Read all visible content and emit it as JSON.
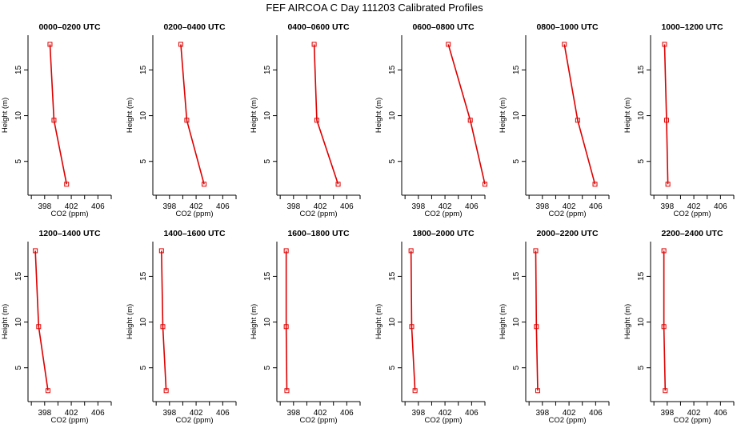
{
  "title": "FEF AIRCOA C  Day 111203  Calibrated Profiles",
  "colors": {
    "series": "#dd0000",
    "axis": "#000000"
  },
  "chart_data": [
    {
      "type": "line",
      "title": "0000–0200 UTC",
      "xlabel": "CO2 (ppm)",
      "ylabel": "Height (m)",
      "xlim": [
        395.5,
        408
      ],
      "ylim": [
        1.3,
        18.8
      ],
      "xticks": [
        398,
        402,
        406
      ],
      "yticks": [
        5,
        10,
        15
      ],
      "y": [
        17.8,
        9.5,
        2.5
      ],
      "x": [
        398.8,
        399.4,
        401.3
      ]
    },
    {
      "type": "line",
      "title": "0200–0400 UTC",
      "xlabel": "CO2 (ppm)",
      "ylabel": "Height (m)",
      "xlim": [
        395.5,
        408
      ],
      "ylim": [
        1.3,
        18.8
      ],
      "xticks": [
        398,
        402,
        406
      ],
      "yticks": [
        5,
        10,
        15
      ],
      "y": [
        17.8,
        9.5,
        2.5
      ],
      "x": [
        399.7,
        400.6,
        403.2
      ]
    },
    {
      "type": "line",
      "title": "0400–0600 UTC",
      "xlabel": "CO2 (ppm)",
      "ylabel": "Height (m)",
      "xlim": [
        395.5,
        408
      ],
      "ylim": [
        1.3,
        18.8
      ],
      "xticks": [
        398,
        402,
        406
      ],
      "yticks": [
        5,
        10,
        15
      ],
      "y": [
        17.8,
        9.5,
        2.5
      ],
      "x": [
        401.1,
        401.5,
        404.7
      ]
    },
    {
      "type": "line",
      "title": "0600–0800 UTC",
      "xlabel": "CO2 (ppm)",
      "ylabel": "Height (m)",
      "xlim": [
        395.5,
        408
      ],
      "ylim": [
        1.3,
        18.8
      ],
      "xticks": [
        398,
        402,
        406
      ],
      "yticks": [
        5,
        10,
        15
      ],
      "y": [
        17.8,
        9.5,
        2.5
      ],
      "x": [
        402.5,
        405.8,
        408.0
      ]
    },
    {
      "type": "line",
      "title": "0800–1000 UTC",
      "xlabel": "CO2 (ppm)",
      "ylabel": "Height (m)",
      "xlim": [
        395.5,
        408
      ],
      "ylim": [
        1.3,
        18.8
      ],
      "xticks": [
        398,
        402,
        406
      ],
      "yticks": [
        5,
        10,
        15
      ],
      "y": [
        17.8,
        9.5,
        2.5
      ],
      "x": [
        401.3,
        403.3,
        405.9
      ]
    },
    {
      "type": "line",
      "title": "1000–1200 UTC",
      "xlabel": "CO2 (ppm)",
      "ylabel": "Height (m)",
      "xlim": [
        395.5,
        408
      ],
      "ylim": [
        1.3,
        18.8
      ],
      "xticks": [
        398,
        402,
        406
      ],
      "yticks": [
        5,
        10,
        15
      ],
      "y": [
        17.8,
        9.5,
        2.5
      ],
      "x": [
        397.6,
        397.9,
        398.1
      ]
    },
    {
      "type": "line",
      "title": "1200–1400 UTC",
      "xlabel": "CO2 (ppm)",
      "ylabel": "Height (m)",
      "xlim": [
        395.5,
        408
      ],
      "ylim": [
        1.3,
        18.8
      ],
      "xticks": [
        398,
        402,
        406
      ],
      "yticks": [
        5,
        10,
        15
      ],
      "y": [
        17.8,
        9.5,
        2.5
      ],
      "x": [
        396.6,
        397.1,
        398.5
      ]
    },
    {
      "type": "line",
      "title": "1400–1600 UTC",
      "xlabel": "CO2 (ppm)",
      "ylabel": "Height (m)",
      "xlim": [
        395.5,
        408
      ],
      "ylim": [
        1.3,
        18.8
      ],
      "xticks": [
        398,
        402,
        406
      ],
      "yticks": [
        5,
        10,
        15
      ],
      "y": [
        17.8,
        9.5,
        2.5
      ],
      "x": [
        396.8,
        397.0,
        397.5
      ]
    },
    {
      "type": "line",
      "title": "1600–1800 UTC",
      "xlabel": "CO2 (ppm)",
      "ylabel": "Height (m)",
      "xlim": [
        395.5,
        408
      ],
      "ylim": [
        1.3,
        18.8
      ],
      "xticks": [
        398,
        402,
        406
      ],
      "yticks": [
        5,
        10,
        15
      ],
      "y": [
        17.8,
        9.5,
        2.5
      ],
      "x": [
        396.9,
        396.9,
        397.0
      ]
    },
    {
      "type": "line",
      "title": "1800–2000 UTC",
      "xlabel": "CO2 (ppm)",
      "ylabel": "Height (m)",
      "xlim": [
        395.5,
        408
      ],
      "ylim": [
        1.3,
        18.8
      ],
      "xticks": [
        398,
        402,
        406
      ],
      "yticks": [
        5,
        10,
        15
      ],
      "y": [
        17.8,
        9.5,
        2.5
      ],
      "x": [
        396.9,
        397.0,
        397.5
      ]
    },
    {
      "type": "line",
      "title": "2000–2200 UTC",
      "xlabel": "CO2 (ppm)",
      "ylabel": "Height (m)",
      "xlim": [
        395.5,
        408
      ],
      "ylim": [
        1.3,
        18.8
      ],
      "xticks": [
        398,
        402,
        406
      ],
      "yticks": [
        5,
        10,
        15
      ],
      "y": [
        17.8,
        9.5,
        2.5
      ],
      "x": [
        397.0,
        397.1,
        397.3
      ]
    },
    {
      "type": "line",
      "title": "2200–2400 UTC",
      "xlabel": "CO2 (ppm)",
      "ylabel": "Height (m)",
      "xlim": [
        395.5,
        408
      ],
      "ylim": [
        1.3,
        18.8
      ],
      "xticks": [
        398,
        402,
        406
      ],
      "yticks": [
        5,
        10,
        15
      ],
      "y": [
        17.8,
        9.5,
        2.5
      ],
      "x": [
        397.5,
        397.5,
        397.7
      ]
    }
  ]
}
